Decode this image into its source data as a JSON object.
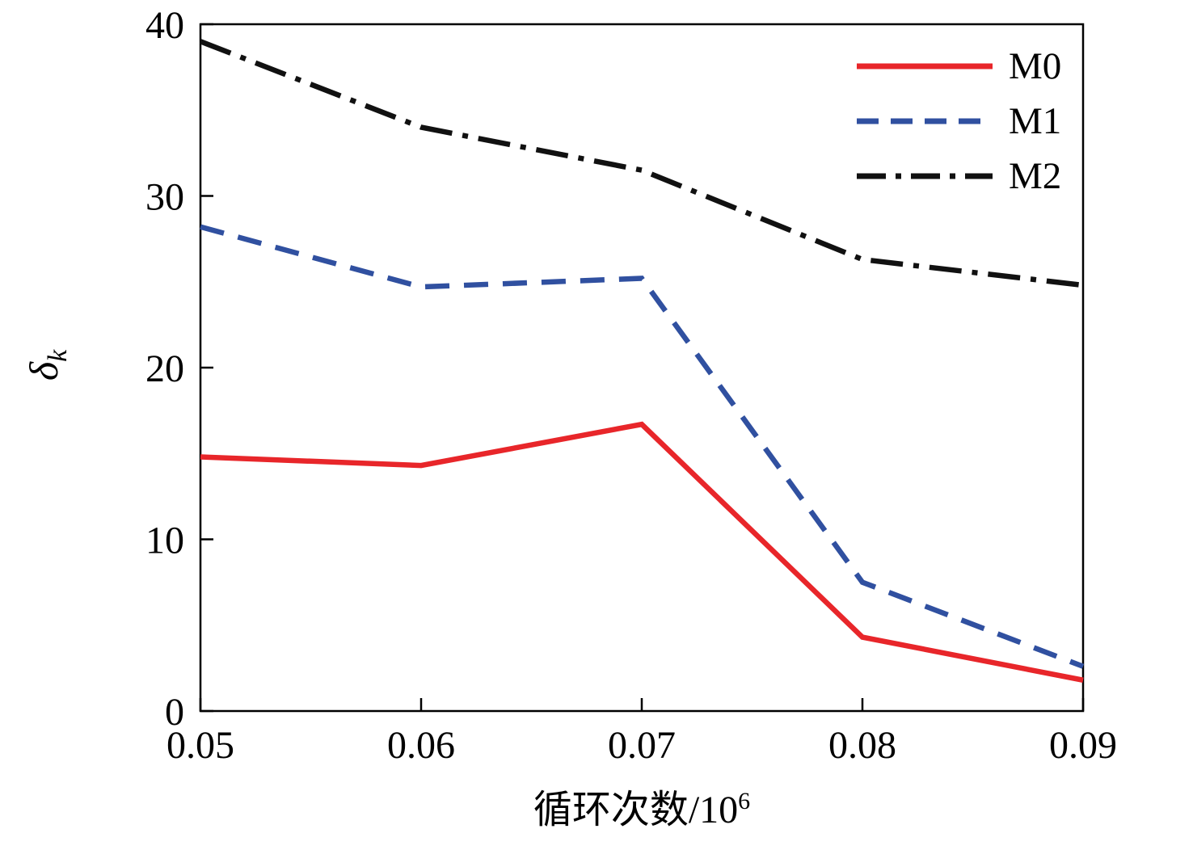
{
  "figure": {
    "ylabel": {
      "main": "δ",
      "sub": "k"
    },
    "xlabel": {
      "text": "循环次数/10",
      "sup": "6"
    }
  },
  "chart_data": {
    "type": "line",
    "title": "",
    "xlabel": "循环次数/10⁶",
    "ylabel": "δk",
    "xlim": [
      0.05,
      0.09
    ],
    "ylim": [
      0,
      40
    ],
    "grid": false,
    "legend_position": "upper right",
    "x": [
      0.05,
      0.06,
      0.07,
      0.08,
      0.09
    ],
    "x_tick_labels": [
      "0.05",
      "0.06",
      "0.07",
      "0.08",
      "0.09"
    ],
    "y_ticks": [
      0,
      10,
      20,
      30,
      40
    ],
    "y_tick_labels": [
      "0",
      "10",
      "20",
      "30",
      "40"
    ],
    "series": [
      {
        "name": "M0",
        "color": "#e8262a",
        "style": "solid",
        "values": [
          14.8,
          14.3,
          16.7,
          4.3,
          1.8
        ]
      },
      {
        "name": "M1",
        "color": "#3050a0",
        "style": "dashed",
        "values": [
          28.2,
          24.7,
          25.2,
          7.5,
          2.6
        ]
      },
      {
        "name": "M2",
        "color": "#111111",
        "style": "dashdot",
        "values": [
          39.0,
          34.0,
          31.5,
          26.3,
          24.8
        ]
      }
    ]
  }
}
